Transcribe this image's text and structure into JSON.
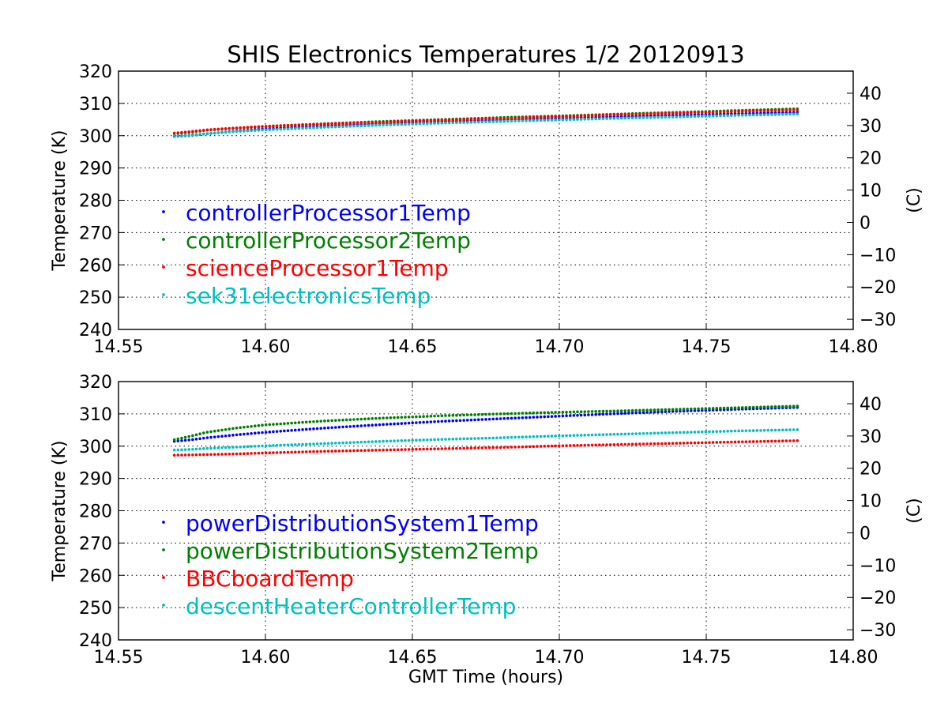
{
  "title": "SHIS Electronics Temperatures 1/2 20120913",
  "chart_data": [
    {
      "type": "scatter",
      "title": "SHIS Electronics Temperatures 1/2 20120913",
      "xlabel": "",
      "ylabel": "Temperature (K)",
      "ylabel_right": "(C)",
      "xlim": [
        14.55,
        14.8
      ],
      "ylim": [
        240,
        320
      ],
      "ylim_right_celsius": [
        -33.15,
        46.85
      ],
      "xticks": [
        "14.55",
        "14.60",
        "14.65",
        "14.70",
        "14.75",
        "14.80"
      ],
      "yticks": [
        "240",
        "250",
        "260",
        "270",
        "280",
        "290",
        "300",
        "310",
        "320"
      ],
      "yticks_right": [
        "−30",
        "−20",
        "−10",
        "0",
        "10",
        "20",
        "30",
        "40"
      ],
      "grid": true,
      "legend_position": "center-left",
      "series": [
        {
          "name": "controllerProcessor1Temp",
          "color": "#0000ff",
          "x": [
            14.569,
            14.575,
            14.58,
            14.59,
            14.6,
            14.62,
            14.64,
            14.66,
            14.68,
            14.7,
            14.72,
            14.74,
            14.76,
            14.781
          ],
          "y": [
            299.8,
            300.1,
            300.6,
            301.4,
            302.1,
            303.0,
            303.8,
            304.4,
            304.9,
            305.4,
            305.9,
            306.3,
            306.8,
            307.2
          ]
        },
        {
          "name": "controllerProcessor2Temp",
          "color": "#008000",
          "x": [
            14.569,
            14.575,
            14.58,
            14.59,
            14.6,
            14.62,
            14.64,
            14.66,
            14.68,
            14.7,
            14.72,
            14.74,
            14.76,
            14.781
          ],
          "y": [
            300.6,
            301.1,
            301.7,
            302.3,
            302.9,
            303.7,
            304.4,
            305.0,
            305.6,
            306.1,
            306.7,
            307.2,
            307.8,
            308.3
          ]
        },
        {
          "name": "scienceProcessor1Temp",
          "color": "#ff0000",
          "x": [
            14.569,
            14.575,
            14.58,
            14.59,
            14.6,
            14.62,
            14.64,
            14.66,
            14.68,
            14.7,
            14.72,
            14.74,
            14.76,
            14.781
          ],
          "y": [
            300.8,
            301.3,
            301.8,
            302.4,
            302.9,
            303.6,
            304.2,
            304.8,
            305.3,
            305.9,
            306.5,
            307.0,
            307.5,
            308.0
          ]
        },
        {
          "name": "sek31electronicsTemp",
          "color": "#00bfbf",
          "x": [
            14.569,
            14.575,
            14.58,
            14.59,
            14.6,
            14.62,
            14.64,
            14.66,
            14.68,
            14.7,
            14.72,
            14.74,
            14.76,
            14.781
          ],
          "y": [
            299.9,
            300.2,
            300.6,
            301.3,
            301.8,
            302.6,
            303.3,
            303.9,
            304.4,
            304.9,
            305.4,
            305.8,
            306.3,
            306.7
          ]
        }
      ]
    },
    {
      "type": "scatter",
      "title": "",
      "xlabel": "GMT Time (hours)",
      "ylabel": "Temperature (K)",
      "ylabel_right": "(C)",
      "xlim": [
        14.55,
        14.8
      ],
      "ylim": [
        240,
        320
      ],
      "ylim_right_celsius": [
        -33.15,
        46.85
      ],
      "xticks": [
        "14.55",
        "14.60",
        "14.65",
        "14.70",
        "14.75",
        "14.80"
      ],
      "yticks": [
        "240",
        "250",
        "260",
        "270",
        "280",
        "290",
        "300",
        "310",
        "320"
      ],
      "yticks_right": [
        "−30",
        "−20",
        "−10",
        "0",
        "10",
        "20",
        "30",
        "40"
      ],
      "grid": true,
      "legend_position": "center-left",
      "series": [
        {
          "name": "powerDistributionSystem1Temp",
          "color": "#0000ff",
          "x": [
            14.569,
            14.575,
            14.58,
            14.59,
            14.6,
            14.62,
            14.64,
            14.66,
            14.68,
            14.7,
            14.72,
            14.74,
            14.76,
            14.781
          ],
          "y": [
            301.5,
            302.0,
            302.6,
            303.5,
            304.3,
            305.6,
            306.7,
            307.7,
            308.5,
            309.3,
            310.1,
            310.8,
            311.4,
            312.0
          ]
        },
        {
          "name": "powerDistributionSystem2Temp",
          "color": "#008000",
          "x": [
            14.569,
            14.575,
            14.58,
            14.59,
            14.6,
            14.62,
            14.64,
            14.66,
            14.68,
            14.7,
            14.72,
            14.74,
            14.76,
            14.781
          ],
          "y": [
            302.0,
            303.2,
            304.3,
            305.6,
            306.6,
            307.8,
            308.7,
            309.4,
            310.0,
            310.5,
            310.9,
            311.4,
            311.9,
            312.4
          ]
        },
        {
          "name": "BBCboardTemp",
          "color": "#ff0000",
          "x": [
            14.569,
            14.575,
            14.58,
            14.59,
            14.6,
            14.62,
            14.64,
            14.66,
            14.68,
            14.7,
            14.72,
            14.74,
            14.76,
            14.781
          ],
          "y": [
            297.2,
            297.3,
            297.4,
            297.6,
            297.9,
            298.4,
            298.8,
            299.2,
            299.6,
            300.1,
            300.5,
            300.9,
            301.3,
            301.7
          ]
        },
        {
          "name": "descentHeaterControllerTemp",
          "color": "#00bfbf",
          "x": [
            14.569,
            14.575,
            14.58,
            14.59,
            14.6,
            14.62,
            14.64,
            14.66,
            14.68,
            14.7,
            14.72,
            14.74,
            14.76,
            14.781
          ],
          "y": [
            298.8,
            299.0,
            299.3,
            299.7,
            300.1,
            300.8,
            301.5,
            302.1,
            302.6,
            303.2,
            303.7,
            304.2,
            304.7,
            305.1
          ]
        }
      ]
    }
  ]
}
